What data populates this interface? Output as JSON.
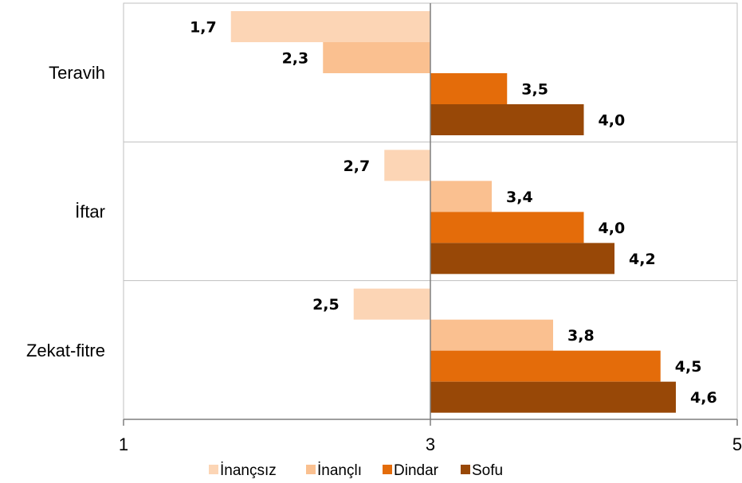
{
  "chart_data": {
    "type": "bar",
    "orientation": "horizontal",
    "categories": [
      "Teravih",
      "İftar",
      "Zekat-fitre"
    ],
    "series": [
      {
        "name": "İnançsız",
        "color": "#fcd5b5",
        "values": [
          1.7,
          2.7,
          2.5
        ],
        "labels": [
          "1,7",
          "2,7",
          "2,5"
        ]
      },
      {
        "name": "İnançlı",
        "color": "#fac090",
        "values": [
          2.3,
          3.4,
          3.8
        ],
        "labels": [
          "2,3",
          "3,4",
          "3,8"
        ]
      },
      {
        "name": "Dindar",
        "color": "#e46c0a",
        "values": [
          3.5,
          4.0,
          4.5
        ],
        "labels": [
          "3,5",
          "4,0",
          "4,5"
        ]
      },
      {
        "name": "Sofu",
        "color": "#984807",
        "values": [
          4.0,
          4.2,
          4.6
        ],
        "labels": [
          "4,0",
          "4,2",
          "4,6"
        ]
      }
    ],
    "xlim": [
      1,
      5
    ],
    "xticks": [
      1,
      3,
      5
    ],
    "xtick_labels": [
      "1",
      "3",
      "5"
    ],
    "baseline": 3,
    "grid": true,
    "legend_position": "bottom",
    "title": "",
    "xlabel": "",
    "ylabel": ""
  }
}
